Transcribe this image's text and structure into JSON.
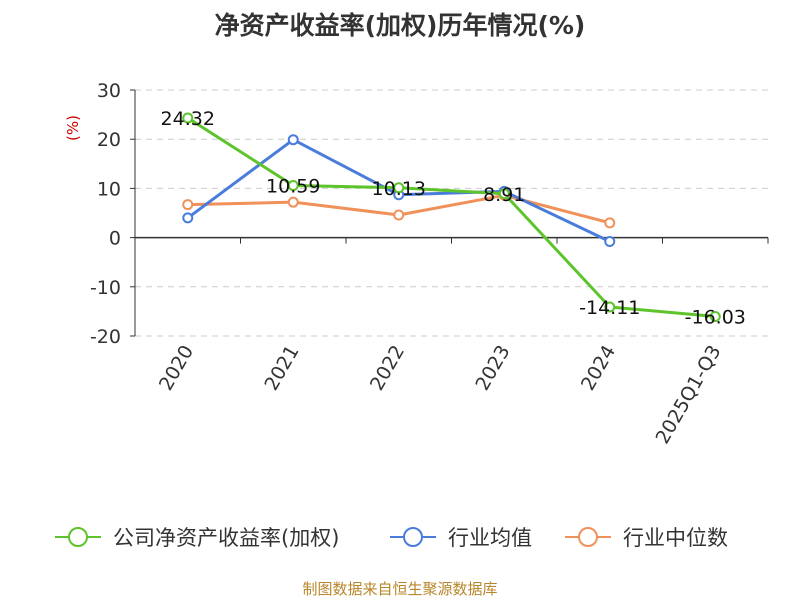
{
  "title": "净资产收益率(加权)历年情况(%)",
  "footer": "制图数据来自恒生聚源数据库",
  "chart_data": {
    "type": "line",
    "title": "净资产收益率(加权)历年情况(%)",
    "ylabel": "(%)",
    "xlabel": "",
    "ylim": [
      -20,
      30
    ],
    "yticks": [
      30,
      20,
      10,
      0,
      -10,
      -20
    ],
    "ytick_labels": [
      "30",
      "20",
      "10",
      "0",
      "-10",
      "-20"
    ],
    "grid": true,
    "legend_position": "bottom",
    "categories": [
      "2020",
      "2021",
      "2022",
      "2023",
      "2024",
      "2025Q1-Q3"
    ],
    "series": [
      {
        "name": "公司净资产收益率(加权)",
        "color": "#5ec42c",
        "values": [
          24.32,
          10.59,
          10.13,
          8.91,
          -14.11,
          -16.03
        ],
        "data_labels": [
          "24.32",
          "10.59",
          "10.13",
          "8.91",
          "-14.11",
          "-16.03"
        ]
      },
      {
        "name": "行业均值",
        "color": "#4a7ddb",
        "values": [
          4.0,
          19.9,
          8.7,
          9.4,
          -0.8,
          null
        ]
      },
      {
        "name": "行业中位数",
        "color": "#f0915a",
        "values": [
          6.7,
          7.2,
          4.6,
          8.6,
          3.0,
          null
        ]
      }
    ]
  }
}
